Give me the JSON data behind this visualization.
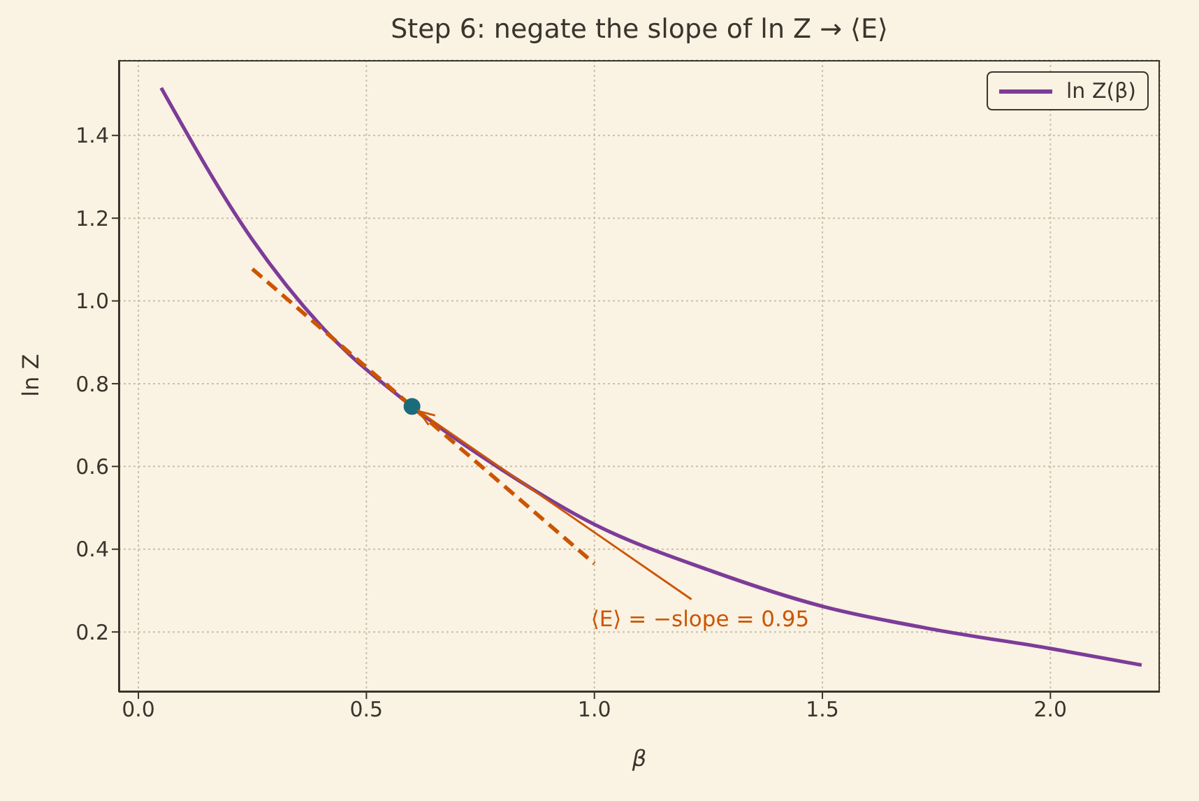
{
  "chart_data": {
    "type": "line",
    "title": "Step 6: negate the slope of ln Z → ⟨E⟩",
    "xlabel": "β",
    "ylabel": "ln Z",
    "xlim": [
      -0.043,
      2.24
    ],
    "ylim": [
      0.055,
      1.582
    ],
    "xticks": [
      {
        "value": 0,
        "label": "0.0"
      },
      {
        "value": 0.5,
        "label": "0.5"
      },
      {
        "value": 1,
        "label": "1.0"
      },
      {
        "value": 1.5,
        "label": "1.5"
      },
      {
        "value": 2,
        "label": "2.0"
      }
    ],
    "yticks": [
      {
        "value": 0.2,
        "label": "0.2"
      },
      {
        "value": 0.4,
        "label": "0.4"
      },
      {
        "value": 0.6,
        "label": "0.6"
      },
      {
        "value": 0.8,
        "label": "0.8"
      },
      {
        "value": 1,
        "label": "1.0"
      },
      {
        "value": 1.2,
        "label": "1.2"
      },
      {
        "value": 1.4,
        "label": "1.4"
      }
    ],
    "grid": true,
    "legend": "top right",
    "series": [
      {
        "name": "ln Z(β)",
        "color": "#7d3c98",
        "line_style": "solid",
        "x": [
          0.05,
          0.25,
          0.4,
          0.6,
          0.8,
          1.0,
          1.25,
          1.5,
          1.75,
          2.0,
          2.2
        ],
        "values": [
          1.515,
          1.148,
          0.94,
          0.745,
          0.59,
          0.46,
          0.35,
          0.262,
          0.205,
          0.16,
          0.12
        ]
      },
      {
        "type": "line",
        "color": "#cc5500",
        "line_style": "dashed",
        "x": [
          0.25,
          1.0
        ],
        "values": [
          1.077,
          0.365
        ]
      },
      {
        "type": "scatter",
        "color": "#1b6c7a",
        "marker": "circle",
        "x": [
          0.6
        ],
        "values": [
          0.745
        ]
      }
    ],
    "annotations": [
      {
        "text": "⟨E⟩ = −slope = 0.95",
        "x": 0.6,
        "y": 0.745
      }
    ]
  }
}
